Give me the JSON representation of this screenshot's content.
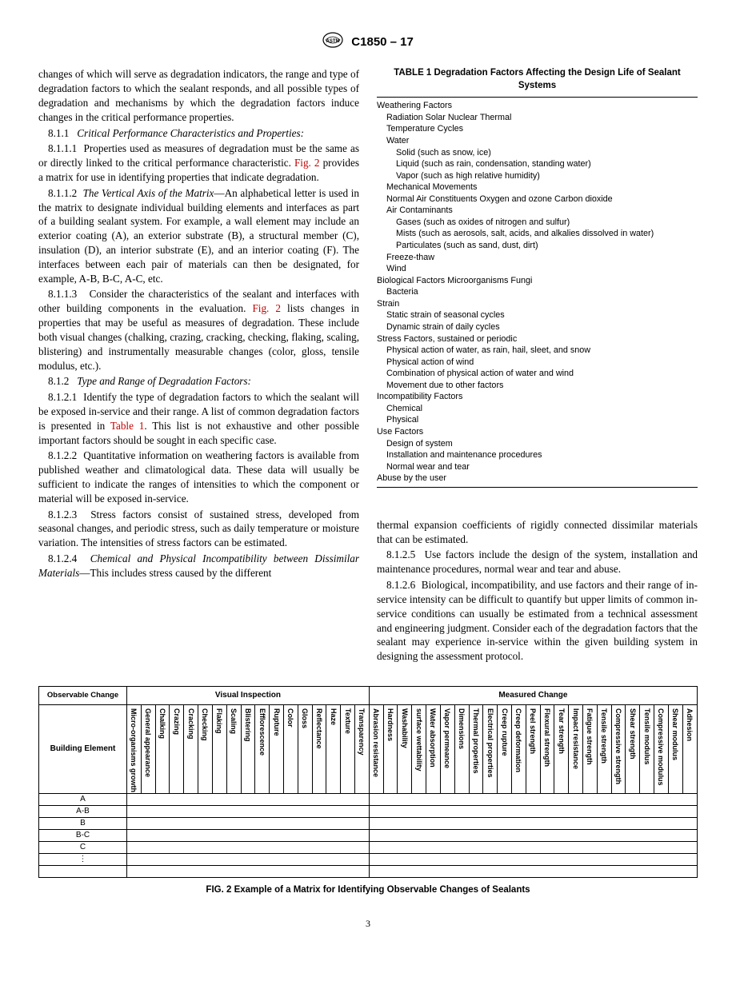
{
  "header": {
    "designation": "C1850 – 17"
  },
  "left_col": {
    "p0": "changes of which will serve as degradation indicators, the range and type of degradation factors to which the sealant responds, and all possible types of degradation and mechanisms by which the degradation factors induce changes in the critical performance properties.",
    "s811": {
      "num": "8.1.1",
      "title": "Critical Performance Characteristics and Properties:"
    },
    "s8111": {
      "num": "8.1.1.1",
      "text_a": "Properties used as measures of degradation must be the same as or directly linked to the critical performance characteristic. ",
      "ref": "Fig. 2",
      "text_b": " provides a matrix for use in identifying properties that indicate degradation."
    },
    "s8112": {
      "num": "8.1.1.2",
      "title": "The Vertical Axis of the Matrix",
      "text": "—An alphabetical letter is used in the matrix to designate individual building elements and interfaces as part of a building sealant system. For example, a wall element may include an exterior coating (A), an exterior substrate (B), a structural member (C), insulation (D), an interior substrate (E), and an interior coating (F). The interfaces between each pair of materials can then be designated, for example, A-B, B-C, A-C, etc."
    },
    "s8113": {
      "num": "8.1.1.3",
      "text_a": "Consider the characteristics of the sealant and interfaces with other building components in the evaluation. ",
      "ref": "Fig. 2",
      "text_b": " lists changes in properties that may be useful as measures of degradation. These include both visual changes (chalking, crazing, cracking, checking, flaking, scaling, blistering) and instrumentally measurable changes (color, gloss, tensile modulus, etc.)."
    },
    "s812": {
      "num": "8.1.2",
      "title": "Type and Range of Degradation Factors:"
    },
    "s8121": {
      "num": "8.1.2.1",
      "text_a": "Identify the type of degradation factors to which the sealant will be exposed in-service and their range. A list of common degradation factors is presented in ",
      "ref": "Table 1",
      "text_b": ". This list is not exhaustive and other possible important factors should be sought in each specific case."
    },
    "s8122": {
      "num": "8.1.2.2",
      "text": "Quantitative information on weathering factors is available from published weather and climatological data. These data will usually be sufficient to indicate the ranges of intensities to which the component or material will be exposed in-service."
    },
    "s8123": {
      "num": "8.1.2.3",
      "text": "Stress factors consist of sustained stress, developed from seasonal changes, and periodic stress, such as daily temperature or moisture variation. The intensities of stress factors can be estimated."
    },
    "s8124": {
      "num": "8.1.2.4",
      "title": "Chemical and Physical Incompatibility between Dissimilar Materials",
      "text": "—This includes stress caused by the different"
    }
  },
  "right_col": {
    "table1": {
      "caption": "TABLE 1 Degradation Factors Affecting the Design Life of Sealant Systems",
      "rows": [
        {
          "lvl": 0,
          "t": "Weathering Factors"
        },
        {
          "lvl": 1,
          "t": "Radiation Solar Nuclear Thermal"
        },
        {
          "lvl": 1,
          "t": "Temperature Cycles"
        },
        {
          "lvl": 1,
          "t": "Water"
        },
        {
          "lvl": 2,
          "t": "Solid (such as snow, ice)"
        },
        {
          "lvl": 2,
          "t": "Liquid (such as rain, condensation, standing water)"
        },
        {
          "lvl": 2,
          "t": "Vapor (such as high relative humidity)"
        },
        {
          "lvl": 1,
          "t": "Mechanical Movements"
        },
        {
          "lvl": 1,
          "t": "Normal Air Constituents Oxygen and ozone Carbon dioxide"
        },
        {
          "lvl": 1,
          "t": "Air Contaminants"
        },
        {
          "lvl": 2,
          "t": "Gases (such as oxides of nitrogen and sulfur)"
        },
        {
          "lvl": 2,
          "t": "Mists (such as aerosols, salt, acids, and alkalies dissolved in water)"
        },
        {
          "lvl": 2,
          "t": "Particulates (such as sand, dust, dirt)"
        },
        {
          "lvl": 1,
          "t": "Freeze-thaw"
        },
        {
          "lvl": 1,
          "t": "Wind"
        },
        {
          "lvl": 0,
          "t": "Biological Factors Microorganisms Fungi"
        },
        {
          "lvl": 1,
          "t": "Bacteria"
        },
        {
          "lvl": 0,
          "t": "Strain"
        },
        {
          "lvl": 1,
          "t": "Static strain of seasonal cycles"
        },
        {
          "lvl": 1,
          "t": "Dynamic strain of daily cycles"
        },
        {
          "lvl": 0,
          "t": "Stress Factors, sustained or periodic"
        },
        {
          "lvl": 1,
          "t": "Physical action of water, as rain, hail, sleet, and snow"
        },
        {
          "lvl": 1,
          "t": "Physical action of wind"
        },
        {
          "lvl": 1,
          "t": "Combination of physical action of water and wind"
        },
        {
          "lvl": 1,
          "t": "Movement due to other factors"
        },
        {
          "lvl": 0,
          "t": "Incompatibility Factors"
        },
        {
          "lvl": 1,
          "t": "Chemical"
        },
        {
          "lvl": 1,
          "t": "Physical"
        },
        {
          "lvl": 0,
          "t": "Use Factors"
        },
        {
          "lvl": 1,
          "t": "Design of system"
        },
        {
          "lvl": 1,
          "t": "Installation and maintenance procedures"
        },
        {
          "lvl": 1,
          "t": "Normal wear and tear"
        },
        {
          "lvl": 0,
          "t": "Abuse by the user"
        }
      ]
    },
    "p_cont": "thermal expansion coefficients of rigidly connected dissimilar materials that can be estimated.",
    "s8125": {
      "num": "8.1.2.5",
      "text": "Use factors include the design of the system, installation and maintenance procedures, normal wear and tear and abuse."
    },
    "s8126": {
      "num": "8.1.2.6",
      "text": "Biological, incompatibility, and use factors and their range of in-service intensity can be difficult to quantify but upper limits of common in-service conditions can usually be estimated from a technical assessment and engineering judgment. Consider each of the degradation factors that the sealant may experience in-service within the given building system in designing the assessment protocol."
    }
  },
  "fig2": {
    "corner_top": "Observable Change",
    "corner_bottom": "Building Element",
    "group_visual": "Visual Inspection",
    "group_measured": "Measured Change",
    "visual_cols": [
      "Micro-organisms growth",
      "General appearance",
      "Chalking",
      "Crazing",
      "Cracking",
      "Checking",
      "Flaking",
      "Scaling",
      "Blistering",
      "Efflorescence",
      "Rupture",
      "Color",
      "Gloss",
      "Reflectance",
      "Haze",
      "Texture",
      "Transparency"
    ],
    "measured_cols": [
      "Abrasion resistance",
      "Hardness",
      "Washability",
      "surface wettability",
      "Water absorption",
      "Vapor permeance",
      "Dimensions",
      "Thermal properties",
      "Electrical properties",
      "Creep rupture",
      "Creep deformation",
      "Peel strength",
      "Flexural strength",
      "Tear strength",
      "Impact resistance",
      "Fatigue strength",
      "Tensile strength",
      "Compressive strength",
      "Shear strength",
      "Tensile modulus",
      "Compressive modulus",
      "Shear modulus",
      "Adhesion"
    ],
    "rows": [
      "A",
      "A-B",
      "B",
      "B-C",
      "C",
      "⋮",
      ""
    ],
    "caption": "FIG. 2 Example of a Matrix for Identifying Observable Changes of Sealants"
  },
  "page_number": "3"
}
